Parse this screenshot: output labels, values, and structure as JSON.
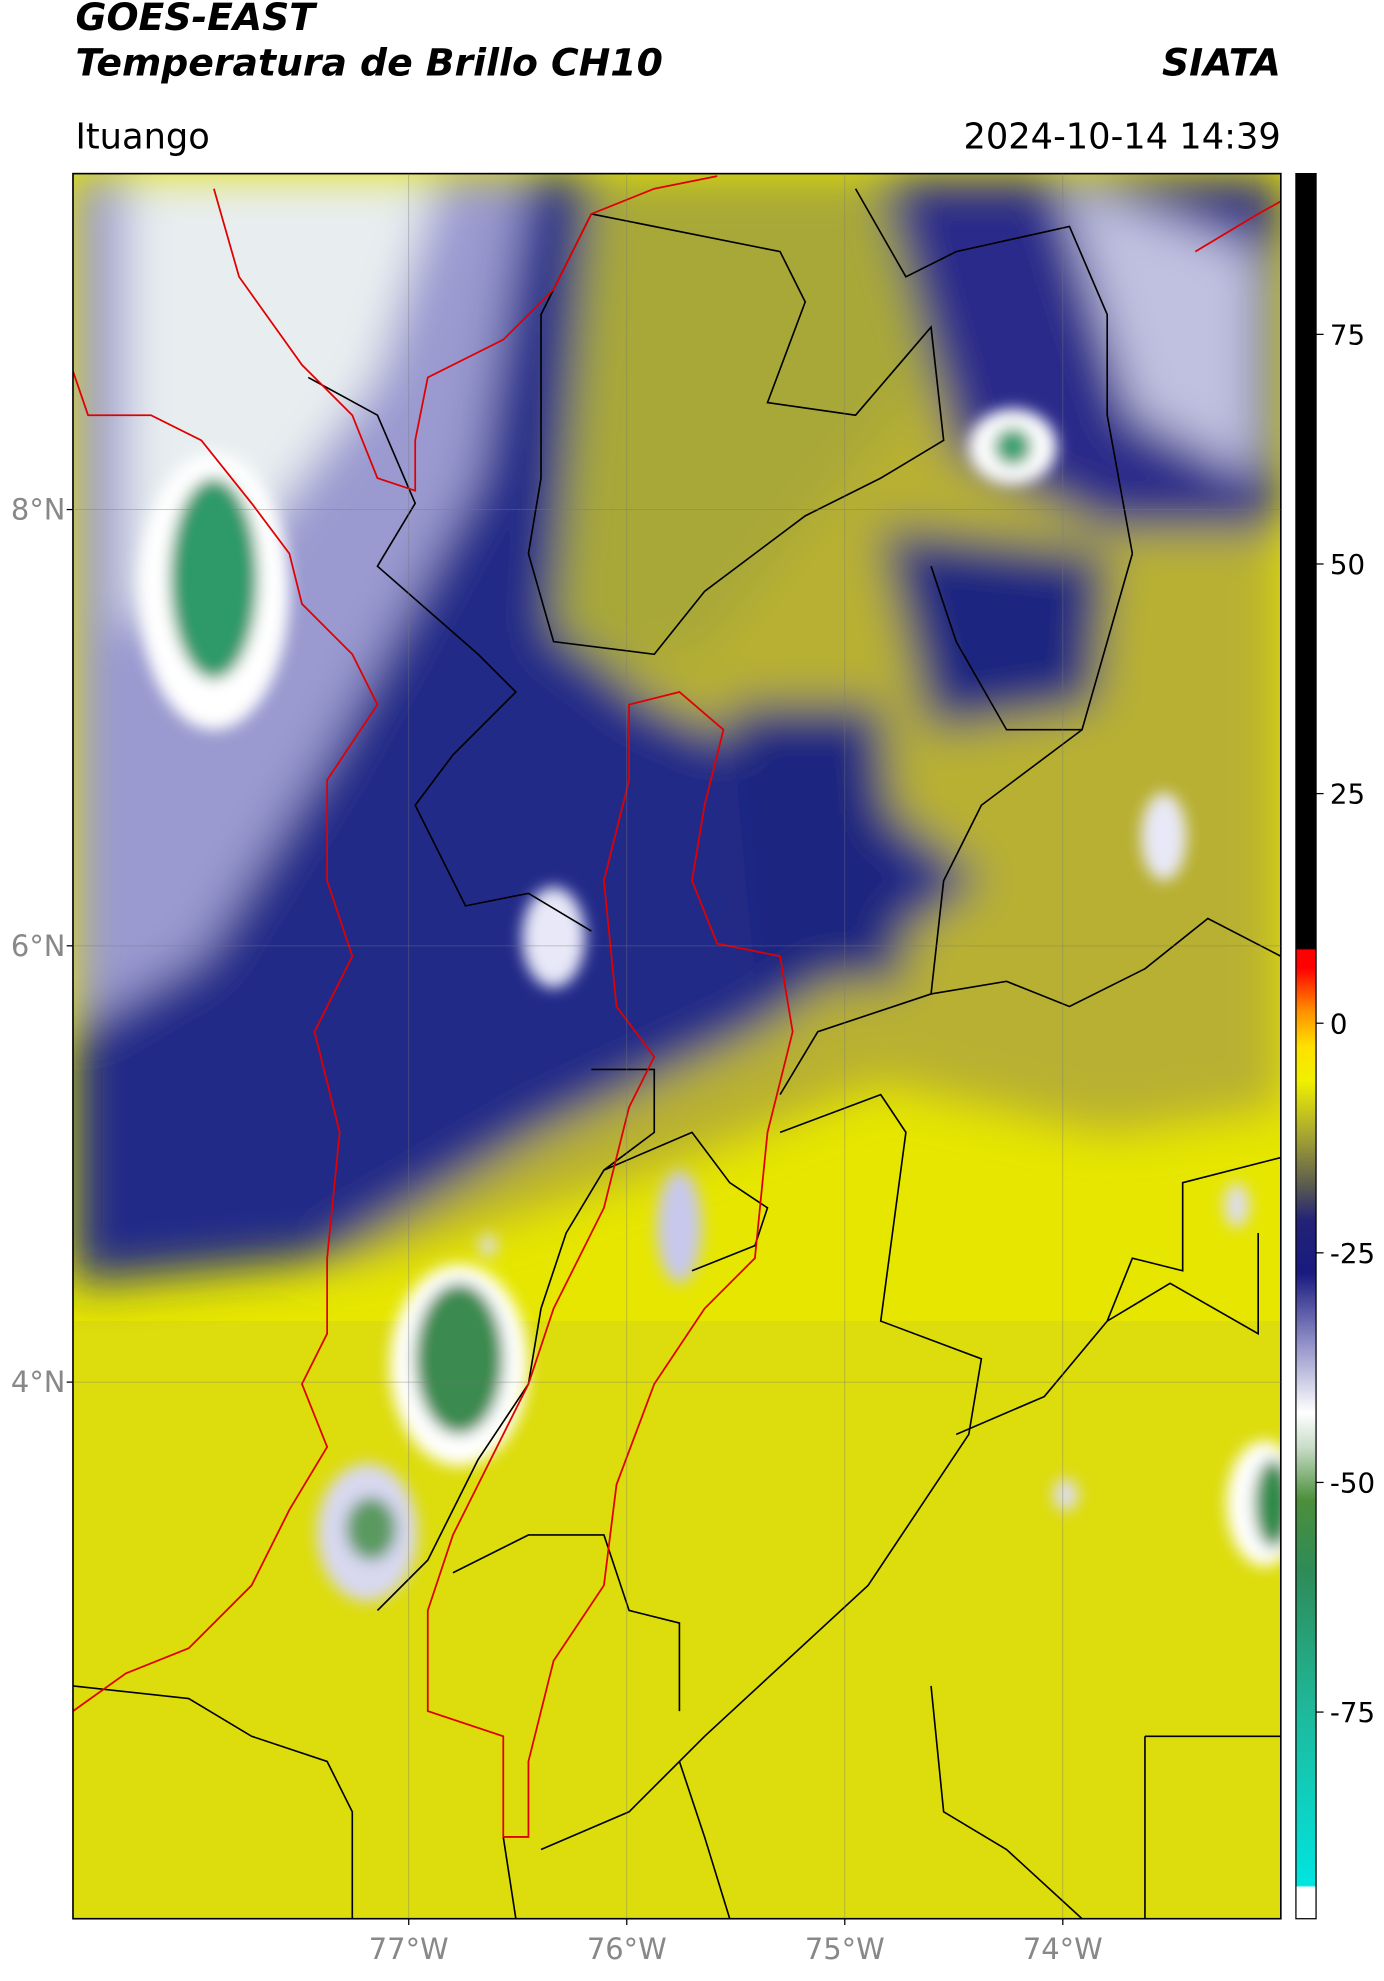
{
  "header": {
    "title_lines": [
      "GOES-EAST",
      "Temperatura de Brillo CH10"
    ],
    "agency": "SIATA",
    "location": "Ituango",
    "datetime": "2024-10-14 14:39"
  },
  "map": {
    "lat_range": [
      1.54,
      9.54
    ],
    "lon_range": [
      -78.54,
      -73.0
    ],
    "lat_ticks": [
      {
        "value": 8,
        "label": "8°N"
      },
      {
        "value": 6,
        "label": "6°N"
      },
      {
        "value": 4,
        "label": "4°N"
      }
    ],
    "lon_ticks": [
      {
        "value": -77,
        "label": "77°W"
      },
      {
        "value": -76,
        "label": "76°W"
      },
      {
        "value": -75,
        "label": "75°W"
      },
      {
        "value": -74,
        "label": "74°W"
      }
    ]
  },
  "colorbar": {
    "range": [
      -97.5,
      92.5
    ],
    "ticks": [
      75,
      50,
      25,
      0,
      -25,
      -50,
      -75
    ]
  }
}
